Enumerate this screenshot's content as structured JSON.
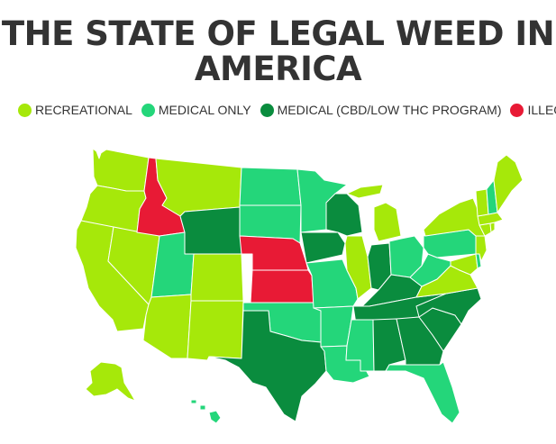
{
  "title": {
    "line1": "THE STATE OF LEGAL WEED IN",
    "line2": "AMERICA"
  },
  "colors": {
    "recreational": "#a6e80a",
    "medical_only": "#24d67a",
    "medical_cbd": "#0a8c3e",
    "illegal": "#e81a35"
  },
  "legend": [
    {
      "label": "RECREATIONAL",
      "category": "recreational"
    },
    {
      "label": "MEDICAL ONLY",
      "category": "medical_only"
    },
    {
      "label": "MEDICAL (CBD/LOW THC PROGRAM)",
      "category": "medical_cbd"
    },
    {
      "label": "ILLEGAL",
      "category": "illegal"
    }
  ],
  "states": {
    "WA": "recreational",
    "OR": "recreational",
    "CA": "recreational",
    "NV": "recreational",
    "ID": "illegal",
    "MT": "recreational",
    "WY": "medical_cbd",
    "UT": "medical_only",
    "CO": "recreational",
    "AZ": "recreational",
    "NM": "recreational",
    "ND": "medical_only",
    "SD": "medical_only",
    "NE": "illegal",
    "KS": "illegal",
    "OK": "medical_only",
    "TX": "medical_cbd",
    "MN": "medical_only",
    "IA": "medical_cbd",
    "MO": "medical_only",
    "AR": "medical_only",
    "LA": "medical_only",
    "WI": "medical_cbd",
    "IL": "recreational",
    "MI": "recreational",
    "IN": "medical_cbd",
    "OH": "medical_only",
    "KY": "medical_cbd",
    "TN": "medical_cbd",
    "MS": "medical_only",
    "AL": "medical_cbd",
    "GA": "medical_cbd",
    "FL": "medical_only",
    "SC": "medical_cbd",
    "NC": "medical_cbd",
    "VA": "recreational",
    "WV": "medical_only",
    "PA": "medical_only",
    "NY": "recreational",
    "VT": "recreational",
    "NH": "medical_only",
    "ME": "recreational",
    "MA": "recreational",
    "CT": "recreational",
    "RI": "recreational",
    "NJ": "recreational",
    "DE": "medical_only",
    "MD": "recreational",
    "AK": "recreational",
    "HI": "medical_only"
  }
}
